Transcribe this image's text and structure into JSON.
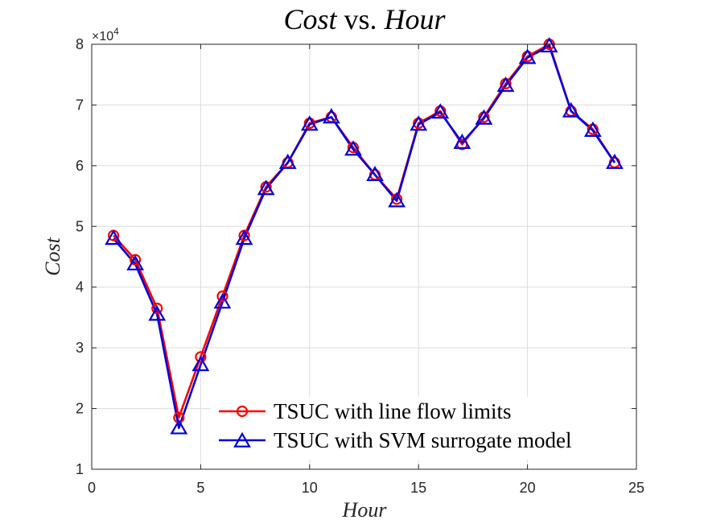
{
  "chart_data": {
    "type": "line",
    "title": {
      "part1": "Cost",
      "part2": " vs. ",
      "part3": "Hour"
    },
    "xlabel": "Hour",
    "ylabel": "Cost",
    "y_multiplier_label": "×10",
    "y_multiplier_exp": "4",
    "xlim": [
      0,
      25
    ],
    "ylim": [
      1,
      8
    ],
    "x_ticks": [
      0,
      5,
      10,
      15,
      20,
      25
    ],
    "y_ticks": [
      1,
      2,
      3,
      4,
      5,
      6,
      7,
      8
    ],
    "grid": true,
    "legend_position": "bottom-right",
    "x": [
      1,
      2,
      3,
      4,
      5,
      6,
      7,
      8,
      9,
      10,
      11,
      12,
      13,
      14,
      15,
      16,
      17,
      18,
      19,
      20,
      21,
      22,
      23,
      24
    ],
    "series": [
      {
        "name": "TSUC with line flow limits",
        "color": "#ff0000",
        "marker": "circle",
        "values": [
          4.85,
          4.45,
          3.65,
          1.85,
          2.85,
          3.85,
          4.85,
          5.65,
          6.05,
          6.7,
          6.8,
          6.3,
          5.85,
          5.45,
          6.7,
          6.9,
          6.35,
          6.8,
          7.35,
          7.8,
          8.0,
          6.9,
          6.6,
          6.05
        ]
      },
      {
        "name": "TSUC with SVM surrogate model",
        "color": "#0000dd",
        "marker": "triangle",
        "values": [
          4.8,
          4.38,
          3.55,
          1.68,
          2.72,
          3.75,
          4.8,
          5.62,
          6.05,
          6.68,
          6.8,
          6.27,
          5.85,
          5.42,
          6.68,
          6.88,
          6.38,
          6.78,
          7.32,
          7.78,
          7.97,
          6.9,
          6.58,
          6.05
        ]
      }
    ]
  }
}
